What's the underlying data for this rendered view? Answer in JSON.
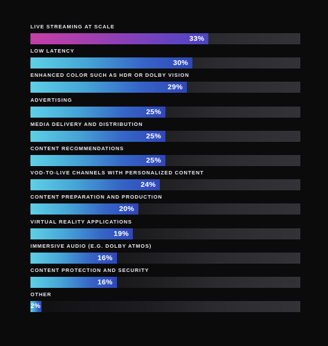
{
  "chart_data": {
    "type": "bar",
    "orientation": "horizontal",
    "title": "",
    "xlabel": "",
    "ylabel": "",
    "xlim": [
      0,
      50
    ],
    "grid": false,
    "legend": "none",
    "unit": "%",
    "categories": [
      "LIVE STREAMING AT SCALE",
      "LOW LATENCY",
      "ENHANCED COLOR SUCH AS HDR OR DOLBY VISION",
      "ADVERTISING",
      "MEDIA DELIVERY AND DISTRIBUTION",
      "CONTENT RECOMMENDATIONS",
      "VOD-TO-LIVE CHANNELS WITH PERSONALIZED CONTENT",
      "CONTENT PREPARATION AND PRODUCTION",
      "VIRTUAL REALITY APPLICATIONS",
      "IMMERSIVE AUDIO (E.G. DOLBY ATMOS)",
      "CONTENT PROTECTION AND SECURITY",
      "OTHER"
    ],
    "values": [
      33,
      30,
      29,
      25,
      25,
      25,
      24,
      20,
      19,
      16,
      16,
      2
    ],
    "value_labels": [
      "33%",
      "30%",
      "29%",
      "25%",
      "25%",
      "25%",
      "24%",
      "20%",
      "19%",
      "16%",
      "16%",
      "2%"
    ],
    "highlight_index": 0,
    "colors": {
      "background": "#0b0b0c",
      "bar_gradient_start": "#5ed0e6",
      "bar_gradient_end": "#3046b8",
      "highlight_gradient_start": "#c53fa7",
      "highlight_gradient_end": "#4a45c4",
      "track": "#2c2c30",
      "label": "#e9e9ee",
      "value": "#ffffff"
    }
  }
}
